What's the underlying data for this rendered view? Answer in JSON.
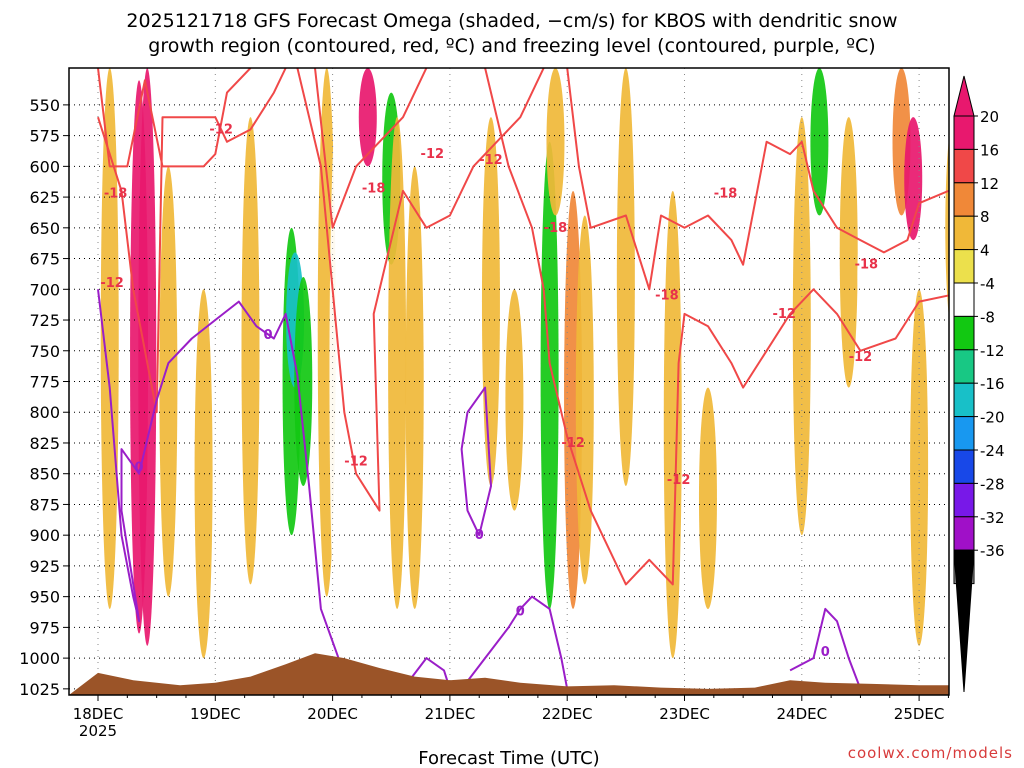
{
  "chart_data": {
    "type": "heatmap",
    "title": [
      "2025121718 GFS Forecast Omega (shaded, −cm/s) for KBOS with dendritic snow",
      "growth region (contoured, red, ºC) and freezing level (contoured, purple, ºC)"
    ],
    "xlabel": "Forecast Time (UTC)",
    "ylabel": "",
    "x_ticks": [
      "18DEC",
      "19DEC",
      "20DEC",
      "21DEC",
      "22DEC",
      "23DEC",
      "24DEC",
      "25DEC"
    ],
    "x_year": "2025",
    "y_ticks": [
      550,
      575,
      600,
      625,
      650,
      675,
      700,
      725,
      750,
      775,
      800,
      825,
      850,
      875,
      900,
      925,
      950,
      975,
      1000,
      1025
    ],
    "ylim": [
      1030,
      520
    ],
    "colorbar": {
      "ticks": [
        20,
        16,
        12,
        8,
        4,
        -4,
        -8,
        -12,
        -16,
        -20,
        -24,
        -28,
        -32,
        -36
      ],
      "bins": [
        {
          "color": "#e8186e"
        },
        {
          "color": "#f04848"
        },
        {
          "color": "#f08838"
        },
        {
          "color": "#f0b838"
        },
        {
          "color": "#ece04c"
        },
        {
          "color": "#ffffff"
        },
        {
          "color": "#12c812"
        },
        {
          "color": "#18c884"
        },
        {
          "color": "#18c0c8"
        },
        {
          "color": "#1898f0"
        },
        {
          "color": "#1848e8"
        },
        {
          "color": "#7818e8"
        },
        {
          "color": "#a010c8"
        },
        {
          "color": "#a0a0a0"
        }
      ],
      "top_color": "#e8186e",
      "bottom_color": "#000000"
    },
    "shaded_regions": [
      {
        "t": 0.1,
        "p1": 520,
        "p2": 960,
        "v": 6
      },
      {
        "t": 0.3,
        "p1": 520,
        "p2": 700,
        "v": -8
      },
      {
        "t": 0.35,
        "p1": 530,
        "p2": 980,
        "v": 20
      },
      {
        "t": 0.42,
        "p1": 520,
        "p2": 990,
        "v": 16
      },
      {
        "t": 0.6,
        "p1": 600,
        "p2": 950,
        "v": 6
      },
      {
        "t": 0.9,
        "p1": 700,
        "p2": 1000,
        "v": 6
      },
      {
        "t": 1.3,
        "p1": 560,
        "p2": 940,
        "v": 6
      },
      {
        "t": 1.55,
        "p1": 640,
        "p2": 930,
        "v": -8
      },
      {
        "t": 1.65,
        "p1": 650,
        "p2": 900,
        "v": -12
      },
      {
        "t": 1.68,
        "p1": 670,
        "p2": 780,
        "v": -20
      },
      {
        "t": 1.75,
        "p1": 690,
        "p2": 860,
        "v": -12
      },
      {
        "t": 1.95,
        "p1": 520,
        "p2": 950,
        "v": 6
      },
      {
        "t": 2.05,
        "p1": 540,
        "p2": 1000,
        "v": -8
      },
      {
        "t": 2.3,
        "p1": 520,
        "p2": 600,
        "v": 16
      },
      {
        "t": 2.5,
        "p1": 540,
        "p2": 680,
        "v": -12
      },
      {
        "t": 2.55,
        "p1": 560,
        "p2": 960,
        "v": 6
      },
      {
        "t": 2.7,
        "p1": 600,
        "p2": 960,
        "v": 6
      },
      {
        "t": 3.25,
        "p1": 520,
        "p2": 980,
        "v": -8
      },
      {
        "t": 3.35,
        "p1": 560,
        "p2": 860,
        "v": 6
      },
      {
        "t": 3.55,
        "p1": 700,
        "p2": 880,
        "v": 6
      },
      {
        "t": 3.85,
        "p1": 580,
        "p2": 960,
        "v": -12
      },
      {
        "t": 3.9,
        "p1": 520,
        "p2": 640,
        "v": 6
      },
      {
        "t": 4.05,
        "p1": 620,
        "p2": 960,
        "v": 10
      },
      {
        "t": 4.15,
        "p1": 640,
        "p2": 940,
        "v": 6
      },
      {
        "t": 4.5,
        "p1": 520,
        "p2": 860,
        "v": 6
      },
      {
        "t": 4.7,
        "p1": 540,
        "p2": 720,
        "v": -8
      },
      {
        "t": 4.9,
        "p1": 620,
        "p2": 1000,
        "v": 6
      },
      {
        "t": 5.2,
        "p1": 780,
        "p2": 960,
        "v": 6
      },
      {
        "t": 5.8,
        "p1": 640,
        "p2": 870,
        "v": -8
      },
      {
        "t": 6.0,
        "p1": 560,
        "p2": 900,
        "v": 6
      },
      {
        "t": 6.15,
        "p1": 520,
        "p2": 640,
        "v": -12
      },
      {
        "t": 6.4,
        "p1": 560,
        "p2": 780,
        "v": 6
      },
      {
        "t": 6.55,
        "p1": 640,
        "p2": 740,
        "v": -8
      },
      {
        "t": 6.85,
        "p1": 520,
        "p2": 640,
        "v": 10
      },
      {
        "t": 6.95,
        "p1": 560,
        "p2": 660,
        "v": 16
      },
      {
        "t": 7.0,
        "p1": 700,
        "p2": 990,
        "v": 6
      },
      {
        "t": 7.3,
        "p1": 560,
        "p2": 740,
        "v": 6
      },
      {
        "t": 7.6,
        "p1": 520,
        "p2": 620,
        "v": 10
      }
    ],
    "contours": [
      {
        "color": "#f04848",
        "level": -12,
        "points": [
          [
            0.0,
            560
          ],
          [
            0.2,
            620
          ],
          [
            0.3,
            700
          ],
          [
            0.5,
            800
          ],
          [
            0.55,
            560
          ],
          [
            1.0,
            560
          ],
          [
            1.1,
            580
          ],
          [
            1.3,
            570
          ],
          [
            1.5,
            540
          ],
          [
            1.6,
            520
          ]
        ]
      },
      {
        "color": "#f04848",
        "level": -18,
        "points": [
          [
            0.0,
            520
          ],
          [
            0.1,
            600
          ],
          [
            0.25,
            600
          ],
          [
            0.4,
            530
          ],
          [
            0.55,
            600
          ],
          [
            0.9,
            600
          ],
          [
            1.0,
            590
          ],
          [
            1.1,
            540
          ],
          [
            1.3,
            520
          ]
        ]
      },
      {
        "color": "#f04848",
        "level": -18,
        "points": [
          [
            1.85,
            520
          ],
          [
            2.0,
            650
          ],
          [
            2.2,
            600
          ],
          [
            2.4,
            580
          ],
          [
            2.6,
            560
          ],
          [
            2.8,
            520
          ]
        ]
      },
      {
        "color": "#f04848",
        "level": -12,
        "points": [
          [
            1.7,
            520
          ],
          [
            1.9,
            600
          ],
          [
            2.1,
            800
          ],
          [
            2.2,
            850
          ],
          [
            2.4,
            880
          ],
          [
            2.35,
            720
          ],
          [
            2.6,
            620
          ],
          [
            2.8,
            650
          ],
          [
            3.0,
            640
          ],
          [
            3.2,
            600
          ],
          [
            3.4,
            580
          ],
          [
            3.6,
            560
          ],
          [
            3.8,
            520
          ]
        ]
      },
      {
        "color": "#f04848",
        "level": -12,
        "points": [
          [
            3.3,
            520
          ],
          [
            3.5,
            600
          ],
          [
            3.7,
            650
          ],
          [
            3.8,
            700
          ],
          [
            3.85,
            760
          ],
          [
            4.0,
            820
          ],
          [
            4.2,
            880
          ],
          [
            4.5,
            940
          ],
          [
            4.7,
            920
          ],
          [
            4.9,
            940
          ],
          [
            4.95,
            760
          ],
          [
            5.0,
            720
          ],
          [
            5.2,
            730
          ],
          [
            5.4,
            760
          ],
          [
            5.5,
            780
          ],
          [
            5.7,
            750
          ],
          [
            5.9,
            720
          ],
          [
            6.1,
            700
          ],
          [
            6.3,
            720
          ],
          [
            6.5,
            750
          ],
          [
            6.8,
            740
          ],
          [
            7.0,
            710
          ],
          [
            7.5,
            700
          ]
        ]
      },
      {
        "color": "#f04848",
        "level": -18,
        "points": [
          [
            4.0,
            520
          ],
          [
            4.1,
            600
          ],
          [
            4.2,
            650
          ],
          [
            4.5,
            640
          ],
          [
            4.7,
            700
          ],
          [
            4.8,
            640
          ],
          [
            5.0,
            650
          ],
          [
            5.2,
            640
          ],
          [
            5.4,
            660
          ],
          [
            5.5,
            680
          ],
          [
            5.6,
            630
          ],
          [
            5.7,
            580
          ],
          [
            5.9,
            590
          ],
          [
            6.0,
            580
          ],
          [
            6.1,
            620
          ],
          [
            6.3,
            650
          ],
          [
            6.5,
            660
          ],
          [
            6.7,
            670
          ],
          [
            6.9,
            660
          ],
          [
            7.0,
            630
          ],
          [
            7.5,
            610
          ]
        ]
      },
      {
        "color": "#9a1ec8",
        "level": 0,
        "points": [
          [
            0.0,
            700
          ],
          [
            0.1,
            780
          ],
          [
            0.2,
            900
          ],
          [
            0.3,
            950
          ],
          [
            0.35,
            970
          ],
          [
            0.2,
            880
          ],
          [
            0.2,
            830
          ],
          [
            0.35,
            850
          ],
          [
            0.5,
            790
          ],
          [
            0.6,
            760
          ],
          [
            0.8,
            740
          ],
          [
            1.0,
            725
          ],
          [
            1.2,
            710
          ],
          [
            1.35,
            730
          ],
          [
            1.5,
            740
          ],
          [
            1.6,
            720
          ],
          [
            1.7,
            770
          ],
          [
            1.8,
            860
          ],
          [
            1.9,
            960
          ],
          [
            2.05,
            1000
          ],
          [
            2.2,
            1025
          ]
        ]
      },
      {
        "color": "#9a1ec8",
        "level": 0,
        "points": [
          [
            3.15,
            800
          ],
          [
            3.3,
            780
          ],
          [
            3.35,
            860
          ],
          [
            3.25,
            900
          ],
          [
            3.15,
            880
          ],
          [
            3.1,
            830
          ],
          [
            3.15,
            800
          ]
        ]
      },
      {
        "color": "#9a1ec8",
        "level": 0,
        "points": [
          [
            2.6,
            1025
          ],
          [
            2.8,
            1000
          ],
          [
            2.95,
            1010
          ],
          [
            3.0,
            1025
          ]
        ]
      },
      {
        "color": "#9a1ec8",
        "level": 0,
        "points": [
          [
            3.1,
            1025
          ],
          [
            3.3,
            1000
          ],
          [
            3.5,
            975
          ],
          [
            3.6,
            960
          ],
          [
            3.7,
            950
          ],
          [
            3.85,
            960
          ],
          [
            3.95,
            1000
          ],
          [
            4.0,
            1025
          ]
        ]
      },
      {
        "color": "#9a1ec8",
        "level": 0,
        "points": [
          [
            5.9,
            1010
          ],
          [
            6.1,
            1000
          ],
          [
            6.2,
            960
          ],
          [
            6.3,
            970
          ],
          [
            6.4,
            1000
          ],
          [
            6.5,
            1025
          ]
        ]
      }
    ],
    "contour_labels": [
      {
        "t": 1.05,
        "p": 570,
        "text": "-12",
        "color": "red"
      },
      {
        "t": 0.15,
        "p": 622,
        "text": "-18",
        "color": "red"
      },
      {
        "t": 0.12,
        "p": 695,
        "text": "-12",
        "color": "red"
      },
      {
        "t": 2.35,
        "p": 618,
        "text": "-18",
        "color": "red"
      },
      {
        "t": 2.85,
        "p": 590,
        "text": "-12",
        "color": "red"
      },
      {
        "t": 3.35,
        "p": 595,
        "text": "-12",
        "color": "red"
      },
      {
        "t": 3.9,
        "p": 650,
        "text": "-18",
        "color": "red"
      },
      {
        "t": 2.2,
        "p": 840,
        "text": "-12",
        "color": "red"
      },
      {
        "t": 4.05,
        "p": 825,
        "text": "-12",
        "color": "red"
      },
      {
        "t": 4.95,
        "p": 855,
        "text": "-12",
        "color": "red"
      },
      {
        "t": 4.85,
        "p": 705,
        "text": "-18",
        "color": "red"
      },
      {
        "t": 5.35,
        "p": 622,
        "text": "-18",
        "color": "red"
      },
      {
        "t": 5.85,
        "p": 720,
        "text": "-12",
        "color": "red"
      },
      {
        "t": 6.55,
        "p": 680,
        "text": "-18",
        "color": "red"
      },
      {
        "t": 6.5,
        "p": 755,
        "text": "-12",
        "color": "red"
      },
      {
        "t": 0.35,
        "p": 845,
        "text": "0",
        "color": "purple"
      },
      {
        "t": 1.45,
        "p": 737,
        "text": "0",
        "color": "purple"
      },
      {
        "t": 3.25,
        "p": 900,
        "text": "0",
        "color": "purple"
      },
      {
        "t": 3.6,
        "p": 962,
        "text": "0",
        "color": "purple"
      },
      {
        "t": 6.2,
        "p": 995,
        "text": "0",
        "color": "purple"
      }
    ],
    "terrain": {
      "color": "#9b5428",
      "profile": [
        [
          0.0,
          1012
        ],
        [
          0.3,
          1018
        ],
        [
          0.7,
          1022
        ],
        [
          1.0,
          1020
        ],
        [
          1.3,
          1015
        ],
        [
          1.6,
          1005
        ],
        [
          1.85,
          996
        ],
        [
          2.1,
          1000
        ],
        [
          2.4,
          1008
        ],
        [
          2.7,
          1015
        ],
        [
          3.0,
          1018
        ],
        [
          3.3,
          1016
        ],
        [
          3.6,
          1020
        ],
        [
          4.0,
          1023
        ],
        [
          4.4,
          1022
        ],
        [
          4.8,
          1024
        ],
        [
          5.2,
          1025
        ],
        [
          5.6,
          1024
        ],
        [
          5.9,
          1018
        ],
        [
          6.2,
          1020
        ],
        [
          6.6,
          1021
        ],
        [
          7.0,
          1022
        ],
        [
          7.45,
          1022
        ]
      ]
    }
  },
  "credit": "coolwx.com/models"
}
